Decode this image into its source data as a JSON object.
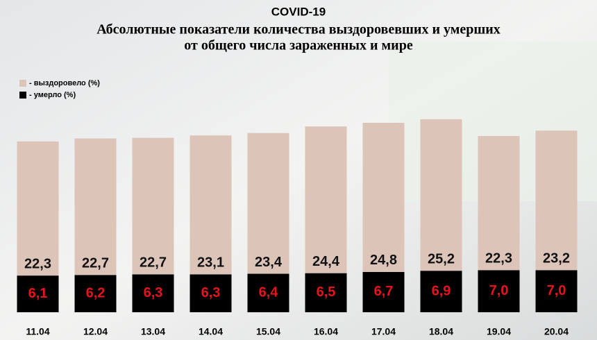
{
  "chart_data": {
    "type": "stacked_bar",
    "title": "COVID-19",
    "subtitle": [
      "Абсолютные показатели количества выздоровевших и умерших",
      "от общего числа зараженных  и мире"
    ],
    "categories": [
      "11.04",
      "12.04",
      "13.04",
      "14.04",
      "15.04",
      "16.04",
      "17.04",
      "18.04",
      "19.04",
      "20.04"
    ],
    "series": [
      {
        "name": "- выздоровело (%)",
        "color": "#dcc4b9",
        "label_color": "#111111",
        "values": [
          22.3,
          22.7,
          22.7,
          23.1,
          23.4,
          24.4,
          24.8,
          25.2,
          22.3,
          23.2
        ],
        "value_labels": [
          "22,3",
          "22,7",
          "22,7",
          "23,1",
          "23,4",
          "24,4",
          "24,8",
          "25,2",
          "22,3",
          "23,2"
        ]
      },
      {
        "name": "- умерло (%)",
        "color": "#000000",
        "label_color": "#e8141b",
        "values": [
          6.1,
          6.2,
          6.3,
          6.3,
          6.4,
          6.5,
          6.7,
          6.9,
          7.0,
          7.0
        ],
        "value_labels": [
          "6,1",
          "6,2",
          "6,3",
          "6,3",
          "6,4",
          "6,5",
          "6,7",
          "6,9",
          "7,0",
          "7,0"
        ]
      }
    ],
    "ylim": [
      0,
      36
    ]
  }
}
